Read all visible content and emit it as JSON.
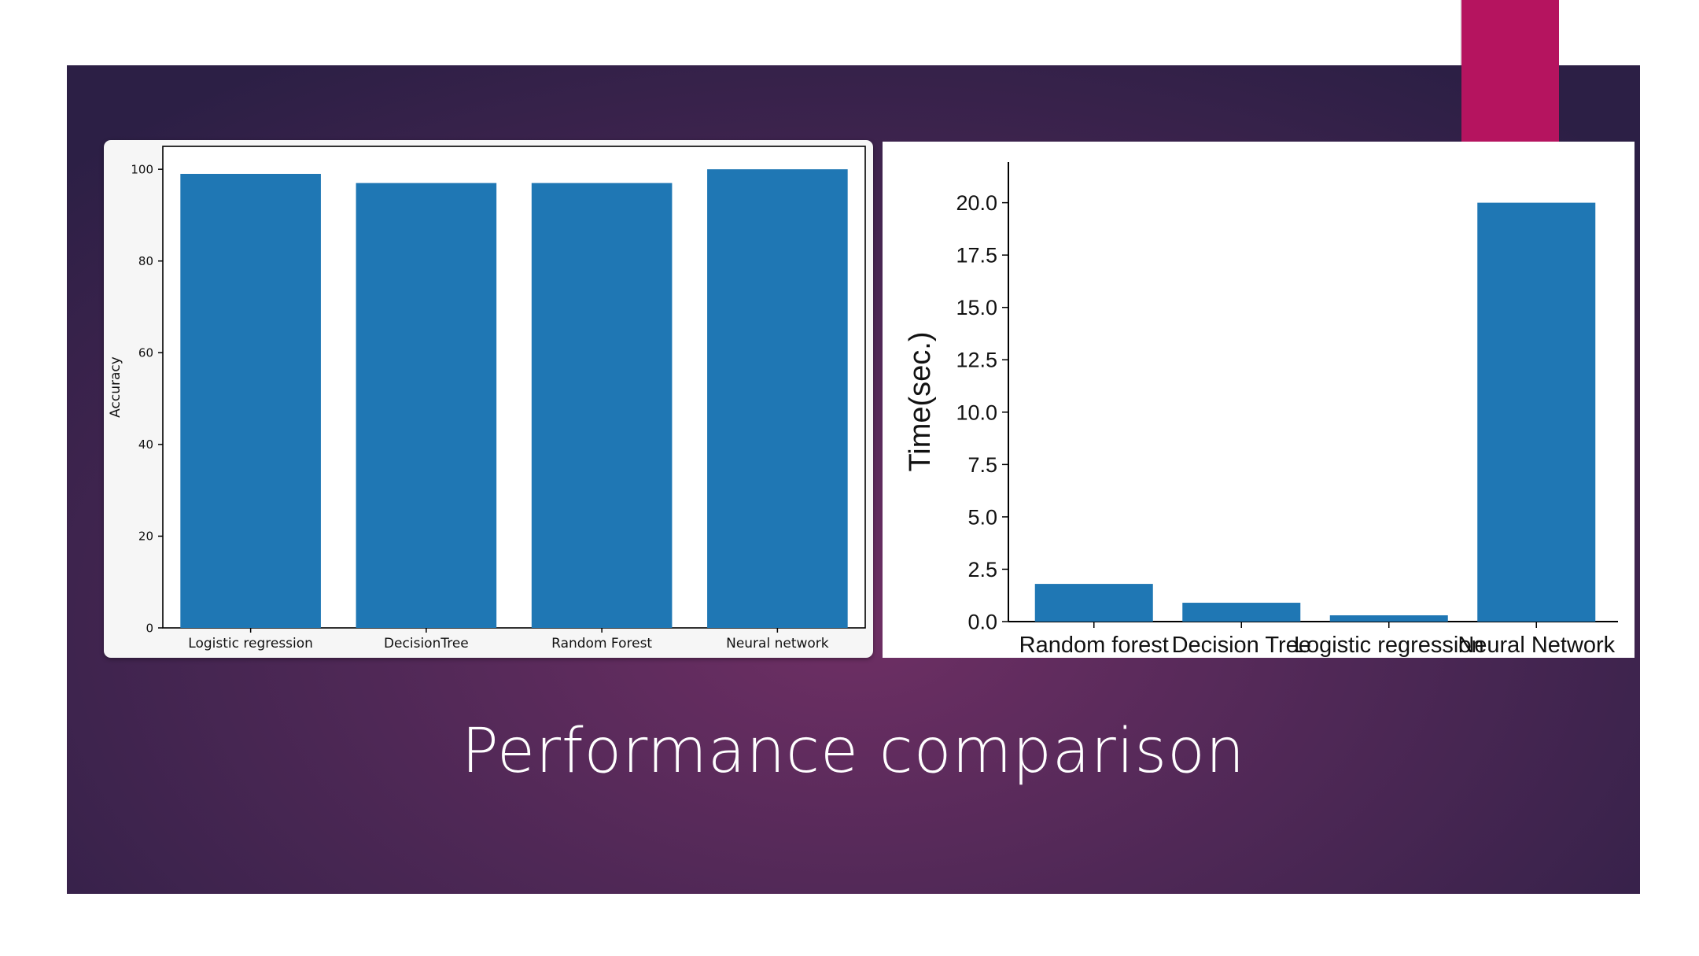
{
  "slide": {
    "title": "Performance comparison",
    "accent_color": "#b5145f",
    "background_colors": [
      "#6e2f64",
      "#4f2856",
      "#2c1f45"
    ]
  },
  "chart_data": [
    {
      "type": "bar",
      "title": "",
      "xlabel": "",
      "ylabel": "Accuracy",
      "categories": [
        "Logistic regression",
        "DecisionTree",
        "Random Forest",
        "Neural network"
      ],
      "values": [
        99,
        97,
        97,
        100
      ],
      "ylim": [
        0,
        105
      ],
      "yticks": [
        0,
        20,
        40,
        60,
        80,
        100
      ],
      "ytick_labels": [
        "0",
        "20",
        "40",
        "60",
        "80",
        "100"
      ],
      "bar_color": "#1f77b4",
      "grid": false,
      "legend": "none"
    },
    {
      "type": "bar",
      "title": "",
      "xlabel": "",
      "ylabel": "Time(sec.)",
      "categories": [
        "Random forest",
        "Decision Tree",
        "Logistic regression",
        "Neural Network"
      ],
      "values": [
        1.8,
        0.9,
        0.3,
        20.0
      ],
      "ylim": [
        0,
        21
      ],
      "yticks": [
        0,
        2.5,
        5,
        7.5,
        10,
        12.5,
        15,
        17.5,
        20
      ],
      "ytick_labels": [
        "0.0",
        "2.5",
        "5.0",
        "7.5",
        "10.0",
        "12.5",
        "15.0",
        "17.5",
        "20.0"
      ],
      "bar_color": "#1f77b4",
      "grid": false,
      "legend": "none"
    }
  ]
}
